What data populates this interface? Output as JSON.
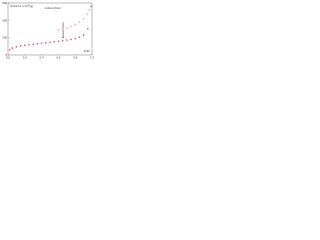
{
  "chart_data": {
    "type": "scatter",
    "y_label": "Volume (cm³/g)",
    "x_label": "P/P₀",
    "annotations": [
      "Adsorption",
      "Desorption"
    ],
    "xlim": [
      0,
      1
    ],
    "xticks": [
      {
        "value": 0,
        "label": "0.0"
      },
      0.2,
      0.4,
      0.6,
      0.8,
      {
        "value": 1,
        "label": "1.0"
      }
    ],
    "ylim": [
      0,
      600
    ],
    "yticks": [
      0,
      200,
      400,
      600
    ],
    "series": [
      {
        "name": "Adsorption",
        "color": "#e0508a",
        "x": [
          0.02,
          0.05,
          0.1,
          0.15,
          0.2,
          0.25,
          0.3,
          0.35,
          0.4,
          0.45,
          0.5,
          0.55,
          0.6,
          0.65,
          0.7,
          0.75,
          0.8,
          0.85,
          0.9,
          0.95,
          0.99
        ],
        "values": [
          60,
          80,
          95,
          105,
          112,
          118,
          124,
          130,
          135,
          140,
          146,
          152,
          158,
          165,
          172,
          180,
          190,
          205,
          230,
          300,
          560
        ]
      },
      {
        "name": "Desorption",
        "color": "#e0508a",
        "x": [
          0.97,
          0.94,
          0.9,
          0.85,
          0.8,
          0.75,
          0.7,
          0.65,
          0.6
        ],
        "values": [
          520,
          470,
          420,
          380,
          350,
          330,
          315,
          300,
          290
        ]
      }
    ]
  }
}
